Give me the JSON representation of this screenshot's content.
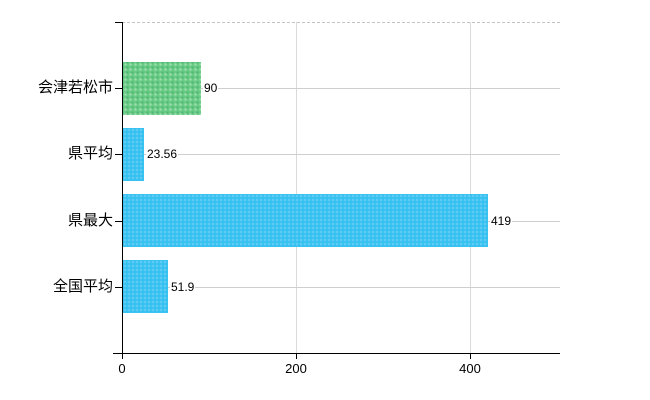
{
  "chart_data": {
    "type": "bar",
    "orientation": "horizontal",
    "title": "",
    "categories": [
      "会津若松市",
      "県平均",
      "県最大",
      "全国平均"
    ],
    "values": [
      90,
      23.56,
      419,
      51.9
    ],
    "value_labels": [
      "90",
      "23.56",
      "419",
      "51.9"
    ],
    "bar_color_names": [
      "green",
      "blue",
      "blue",
      "blue"
    ],
    "xticks": [
      0,
      200,
      400
    ],
    "xtick_labels": [
      "0",
      "200",
      "400"
    ],
    "xlim": [
      0,
      503
    ],
    "grid": true,
    "legend": null,
    "colors": {
      "bar_green": "#69cc85",
      "bar_blue": "#3fc2f2",
      "axis": "#000000",
      "vertical_gridline": "#dadada",
      "category_line": "#cfcfcf",
      "top_border": "#c4c4c4",
      "text": "#000000",
      "background": "#ffffff"
    }
  }
}
